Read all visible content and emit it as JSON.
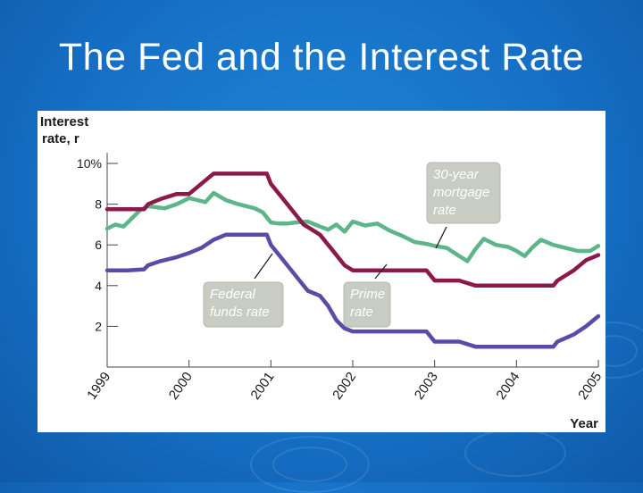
{
  "slide": {
    "title": "The Fed and the Interest Rate"
  },
  "chart_data": {
    "type": "line",
    "title": "",
    "ylabel_line1": "Interest",
    "ylabel_line2": "rate, r",
    "xlabel": "Year",
    "ylim": [
      0,
      10
    ],
    "xlim": [
      1999,
      2005
    ],
    "yticks": [
      {
        "value": 10,
        "label": "10%"
      },
      {
        "value": 8,
        "label": "8"
      },
      {
        "value": 6,
        "label": "6"
      },
      {
        "value": 4,
        "label": "4"
      },
      {
        "value": 2,
        "label": "2"
      }
    ],
    "xticks": [
      {
        "value": 1999,
        "label": "1999"
      },
      {
        "value": 2000,
        "label": "2000"
      },
      {
        "value": 2001,
        "label": "2001"
      },
      {
        "value": 2002,
        "label": "2002"
      },
      {
        "value": 2003,
        "label": "2003"
      },
      {
        "value": 2004,
        "label": "2004"
      },
      {
        "value": 2005,
        "label": "2005"
      }
    ],
    "series": [
      {
        "name": "Prime rate",
        "color": "#8b1a4b",
        "points": [
          [
            1999,
            7.75
          ],
          [
            1999.25,
            7.75
          ],
          [
            1999.45,
            7.75
          ],
          [
            1999.5,
            8.0
          ],
          [
            1999.65,
            8.25
          ],
          [
            1999.85,
            8.5
          ],
          [
            2000,
            8.5
          ],
          [
            2000.15,
            9.0
          ],
          [
            2000.3,
            9.5
          ],
          [
            2000.5,
            9.5
          ],
          [
            2000.95,
            9.5
          ],
          [
            2001,
            9.0
          ],
          [
            2001.1,
            8.5
          ],
          [
            2001.2,
            8.0
          ],
          [
            2001.3,
            7.5
          ],
          [
            2001.4,
            7.0
          ],
          [
            2001.5,
            6.75
          ],
          [
            2001.6,
            6.5
          ],
          [
            2001.7,
            6.0
          ],
          [
            2001.8,
            5.5
          ],
          [
            2001.9,
            5.0
          ],
          [
            2002,
            4.75
          ],
          [
            2002.5,
            4.75
          ],
          [
            2002.9,
            4.75
          ],
          [
            2003,
            4.25
          ],
          [
            2003.3,
            4.25
          ],
          [
            2003.5,
            4.0
          ],
          [
            2004,
            4.0
          ],
          [
            2004.45,
            4.0
          ],
          [
            2004.5,
            4.25
          ],
          [
            2004.7,
            4.75
          ],
          [
            2004.85,
            5.25
          ],
          [
            2005,
            5.5
          ]
        ]
      },
      {
        "name": "30-year mortgage rate",
        "color": "#5db58a",
        "points": [
          [
            1999,
            6.8
          ],
          [
            1999.1,
            7.0
          ],
          [
            1999.2,
            6.9
          ],
          [
            1999.3,
            7.3
          ],
          [
            1999.4,
            7.7
          ],
          [
            1999.5,
            7.9
          ],
          [
            1999.6,
            7.85
          ],
          [
            1999.7,
            7.8
          ],
          [
            1999.85,
            8.0
          ],
          [
            2000,
            8.3
          ],
          [
            2000.1,
            8.2
          ],
          [
            2000.2,
            8.1
          ],
          [
            2000.3,
            8.55
          ],
          [
            2000.45,
            8.2
          ],
          [
            2000.6,
            8.0
          ],
          [
            2000.8,
            7.8
          ],
          [
            2000.9,
            7.6
          ],
          [
            2001,
            7.1
          ],
          [
            2001.1,
            7.05
          ],
          [
            2001.2,
            7.05
          ],
          [
            2001.3,
            7.1
          ],
          [
            2001.45,
            7.15
          ],
          [
            2001.6,
            6.9
          ],
          [
            2001.7,
            6.75
          ],
          [
            2001.8,
            7.0
          ],
          [
            2001.9,
            6.65
          ],
          [
            2002,
            7.15
          ],
          [
            2002.15,
            6.95
          ],
          [
            2002.3,
            7.05
          ],
          [
            2002.45,
            6.7
          ],
          [
            2002.6,
            6.45
          ],
          [
            2002.75,
            6.15
          ],
          [
            2002.9,
            6.05
          ],
          [
            2003,
            5.95
          ],
          [
            2003.15,
            5.85
          ],
          [
            2003.3,
            5.45
          ],
          [
            2003.4,
            5.2
          ],
          [
            2003.5,
            5.8
          ],
          [
            2003.6,
            6.3
          ],
          [
            2003.75,
            6.0
          ],
          [
            2003.9,
            5.9
          ],
          [
            2004,
            5.7
          ],
          [
            2004.1,
            5.45
          ],
          [
            2004.2,
            5.9
          ],
          [
            2004.3,
            6.25
          ],
          [
            2004.45,
            6.0
          ],
          [
            2004.6,
            5.85
          ],
          [
            2004.75,
            5.7
          ],
          [
            2004.9,
            5.7
          ],
          [
            2005,
            5.95
          ]
        ]
      },
      {
        "name": "Federal funds rate",
        "color": "#5b4ba6",
        "points": [
          [
            1999,
            4.75
          ],
          [
            1999.1,
            4.75
          ],
          [
            1999.25,
            4.75
          ],
          [
            1999.45,
            4.8
          ],
          [
            1999.5,
            5.0
          ],
          [
            1999.65,
            5.2
          ],
          [
            1999.85,
            5.4
          ],
          [
            2000,
            5.6
          ],
          [
            2000.15,
            5.85
          ],
          [
            2000.3,
            6.25
          ],
          [
            2000.45,
            6.5
          ],
          [
            2000.6,
            6.5
          ],
          [
            2000.95,
            6.5
          ],
          [
            2001,
            6.0
          ],
          [
            2001.1,
            5.5
          ],
          [
            2001.2,
            5.0
          ],
          [
            2001.3,
            4.5
          ],
          [
            2001.45,
            3.75
          ],
          [
            2001.6,
            3.5
          ],
          [
            2001.7,
            3.0
          ],
          [
            2001.8,
            2.3
          ],
          [
            2001.9,
            1.9
          ],
          [
            2002,
            1.75
          ],
          [
            2002.5,
            1.75
          ],
          [
            2002.9,
            1.75
          ],
          [
            2003,
            1.25
          ],
          [
            2003.3,
            1.25
          ],
          [
            2003.5,
            1.0
          ],
          [
            2004,
            1.0
          ],
          [
            2004.45,
            1.0
          ],
          [
            2004.5,
            1.25
          ],
          [
            2004.7,
            1.6
          ],
          [
            2004.85,
            2.0
          ],
          [
            2005,
            2.5
          ]
        ]
      }
    ],
    "annotations": [
      {
        "lines": [
          "30-year",
          "mortgage",
          "rate"
        ],
        "series": "30-year mortgage rate"
      },
      {
        "lines": [
          "Federal",
          "funds rate"
        ],
        "series": "Federal funds rate"
      },
      {
        "lines": [
          "Prime",
          "rate"
        ],
        "series": "Prime rate"
      }
    ]
  }
}
